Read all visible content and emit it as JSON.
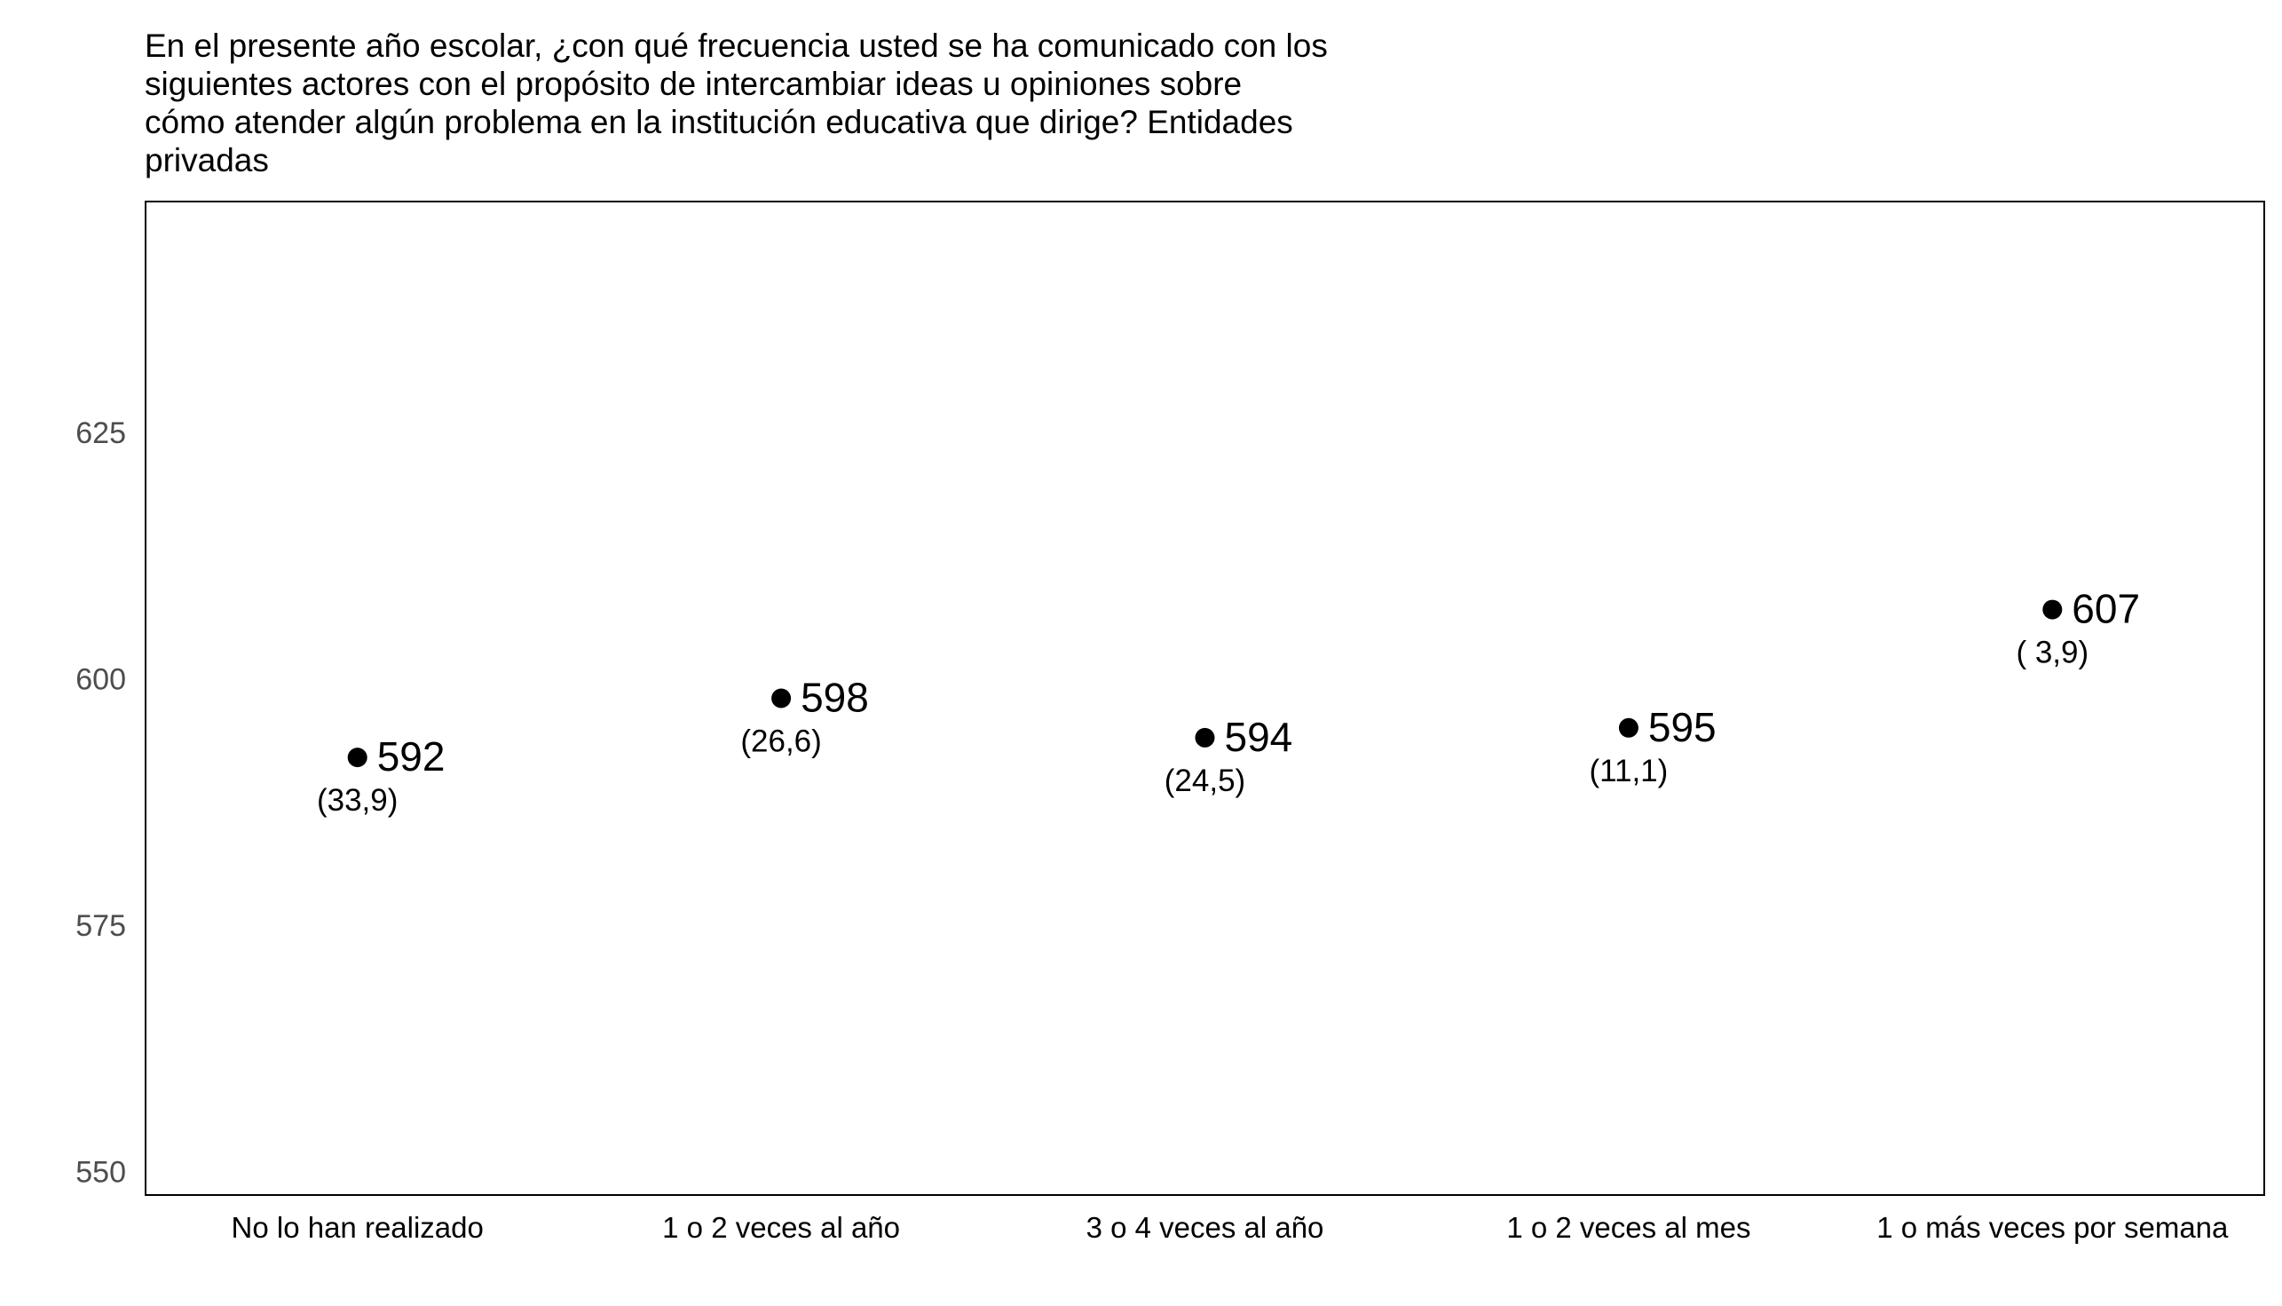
{
  "chart_data": {
    "type": "scatter",
    "title_lines": [
      "En el presente año escolar, ¿con qué frecuencia usted se ha comunicado con los",
      "siguientes actores con el propósito de intercambiar ideas u opiniones sobre",
      "cómo atender algún problema en la institución educativa que dirige? Entidades",
      "privadas"
    ],
    "categories": [
      "No lo han realizado",
      "1 o 2 veces al año",
      "3 o 4 veces al año",
      "1 o 2 veces al mes",
      "1 o más veces por semana"
    ],
    "values": [
      592,
      598,
      594,
      595,
      607
    ],
    "value_labels": [
      "592",
      "598",
      "594",
      "595",
      "607"
    ],
    "percent_labels": [
      "(33,9)",
      "(26,6)",
      "(24,5)",
      "(11,1)",
      "( 3,9)"
    ],
    "yticks": [
      550,
      575,
      600,
      625
    ],
    "ylim": [
      547.6,
      648.4
    ],
    "grid": false,
    "point_color": "#000000"
  }
}
